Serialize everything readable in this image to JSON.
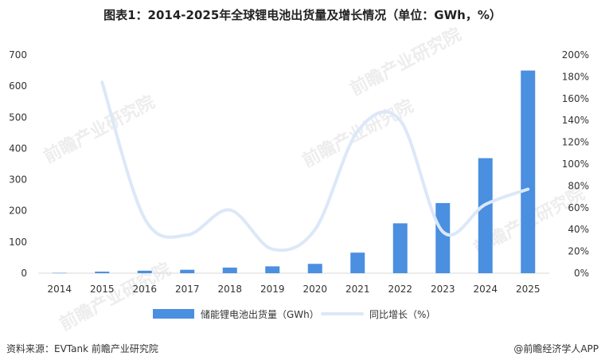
{
  "title": "图表1：2014-2025年全球锂电池出货量及增长情况（单位：GWh，%）",
  "source": "资料来源：EVTank  前瞻产业研究院",
  "credit": "@前瞻经济学人APP",
  "watermark": "前瞻产业研究院",
  "colors": {
    "bar": "#4a8fe0",
    "line": "#dce8f8"
  },
  "chart_data": {
    "type": "bar",
    "categories": [
      "2014",
      "2015",
      "2016",
      "2017",
      "2018",
      "2019",
      "2020",
      "2021",
      "2022",
      "2023",
      "2024",
      "2025"
    ],
    "series": [
      {
        "name": "储能锂电池出货量（GWh）",
        "type": "bar",
        "axis": "left",
        "values": [
          1,
          5,
          8,
          11,
          18,
          22,
          30,
          66,
          160,
          225,
          369,
          650
        ]
      },
      {
        "name": "同比增长（%）",
        "type": "line",
        "axis": "right",
        "values": [
          null,
          175,
          50,
          35,
          58,
          22,
          40,
          130,
          140,
          38,
          63,
          77
        ]
      }
    ],
    "ylim_left": [
      0,
      700
    ],
    "yticks_left": [
      "0",
      "100",
      "200",
      "300",
      "400",
      "500",
      "600",
      "700"
    ],
    "ylim_right": [
      0,
      200
    ],
    "yticks_right": [
      "0%",
      "20%",
      "40%",
      "60%",
      "80%",
      "100%",
      "120%",
      "140%",
      "160%",
      "180%",
      "200%"
    ],
    "legend_position": "bottom"
  }
}
